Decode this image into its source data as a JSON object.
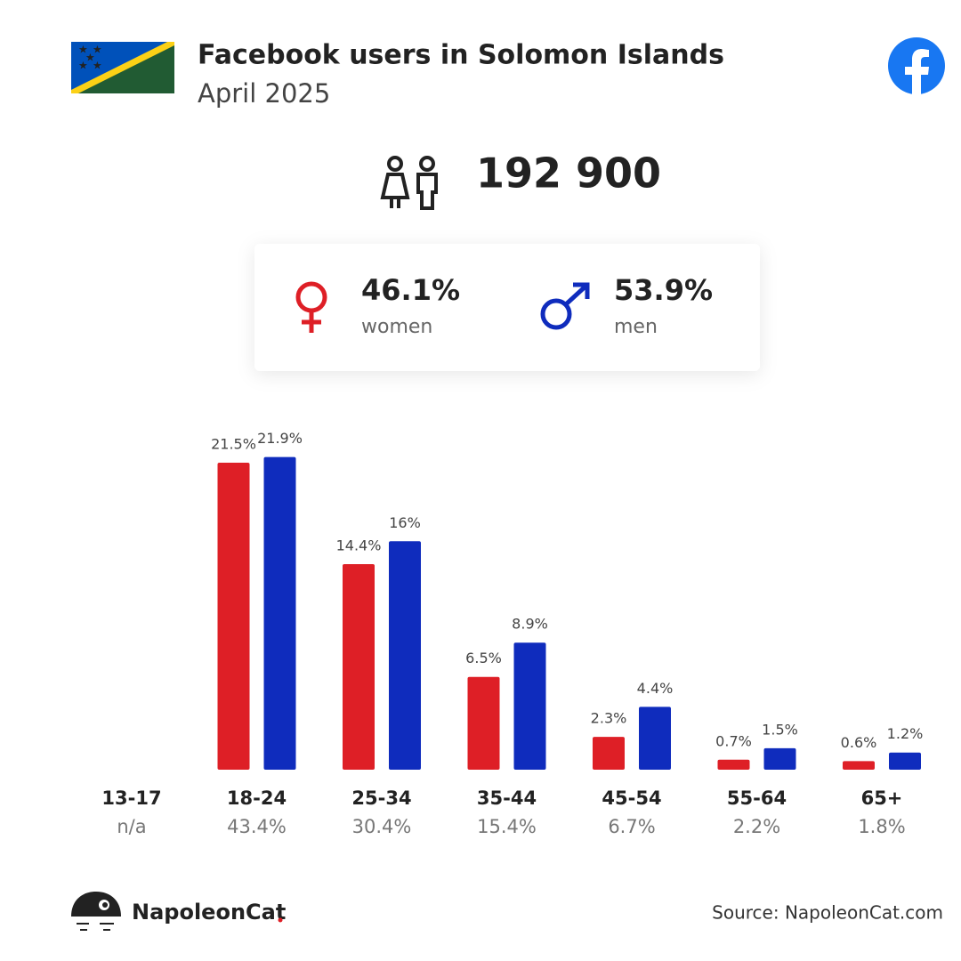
{
  "header": {
    "title": "Facebook users in Solomon Islands",
    "subtitle": "April 2025"
  },
  "total_users": {
    "value": 192900,
    "label": "192 900"
  },
  "gender_shares": [
    {
      "value": 46.1,
      "label": "46.1%"
    },
    {
      "value": 53.9,
      "label": "53.9%"
    }
  ],
  "chart_data": {
    "type": "bar",
    "categories": [
      "13-17",
      "18-24",
      "25-34",
      "35-44",
      "45-54",
      "55-64",
      "65+"
    ],
    "series": [
      {
        "name": "women",
        "color": "#de1f26",
        "values": [
          null,
          21.5,
          14.4,
          6.5,
          2.3,
          0.7,
          0.6
        ],
        "value_labels": [
          null,
          "21.5%",
          "14.4%",
          "6.5%",
          "2.3%",
          "0.7%",
          "0.6%"
        ]
      },
      {
        "name": "men",
        "color": "#0f2cbd",
        "values": [
          null,
          21.9,
          16,
          8.9,
          4.4,
          1.5,
          1.2
        ],
        "value_labels": [
          null,
          "21.9%",
          "16%",
          "8.9%",
          "4.4%",
          "1.5%",
          "1.2%"
        ]
      }
    ],
    "category_totals": [
      "n/a",
      {
        "value": 43.4,
        "label": "43.4%"
      },
      {
        "value": 30.4,
        "label": "30.4%"
      },
      {
        "value": 15.4,
        "label": "15.4%"
      },
      {
        "value": 6.7,
        "label": "6.7%"
      },
      {
        "value": 2.2,
        "label": "2.2%"
      },
      {
        "value": 1.8,
        "label": "1.8%"
      }
    ],
    "ylim": [
      0,
      22
    ]
  },
  "footer": {
    "brand": "NapoleonCat",
    "source": "Source: NapoleonCat.com"
  }
}
